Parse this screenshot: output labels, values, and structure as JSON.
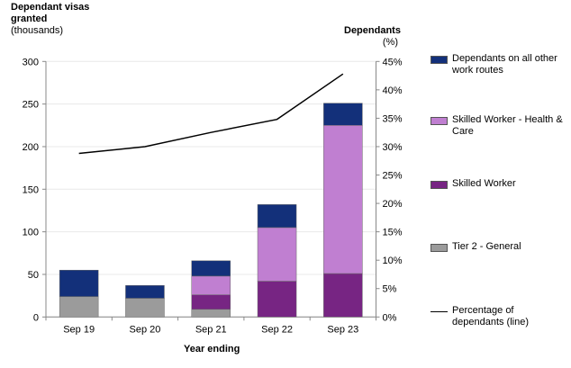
{
  "chart_data": {
    "type": "bar",
    "stacked": true,
    "xlabel": "Year ending",
    "ylabel": "Dependant visas granted (thousands)",
    "ylabel_lines": [
      "Dependant visas",
      "granted",
      "(thousands)"
    ],
    "y2label_lines": [
      "Dependants",
      "(%)"
    ],
    "categories": [
      "Sep 19",
      "Sep 20",
      "Sep 21",
      "Sep 22",
      "Sep 23"
    ],
    "ylim": [
      0,
      300
    ],
    "yticks": [
      0,
      50,
      100,
      150,
      200,
      250,
      300
    ],
    "y2lim": [
      0,
      45
    ],
    "y2ticks": [
      "0%",
      "5%",
      "10%",
      "15%",
      "20%",
      "25%",
      "30%",
      "35%",
      "40%",
      "45%"
    ],
    "grid": true,
    "legend_position": "right",
    "series": [
      {
        "name": "Tier 2 - General",
        "color": "#9b9b9b",
        "values": [
          24,
          22,
          9,
          0,
          0
        ]
      },
      {
        "name": "Skilled Worker",
        "color": "#772583",
        "values": [
          0,
          0,
          17,
          42,
          51
        ]
      },
      {
        "name": "Skilled Worker - Health & Care",
        "color": "#c07fd1",
        "values": [
          0,
          0,
          22,
          63,
          174
        ]
      },
      {
        "name": "Dependants on all other work routes",
        "color": "#13307a",
        "values": [
          31,
          15,
          18,
          27,
          26
        ]
      }
    ],
    "line_series": {
      "name": "Percentage of dependants (line)",
      "color": "#000000",
      "axis": "right",
      "values": [
        28.8,
        30.0,
        32.5,
        34.8,
        42.8
      ]
    },
    "legend_order": [
      "Dependants on all other work routes",
      "Skilled Worker - Health & Care",
      "Skilled Worker",
      "Tier 2 - General",
      "Percentage of dependants (line)"
    ]
  }
}
